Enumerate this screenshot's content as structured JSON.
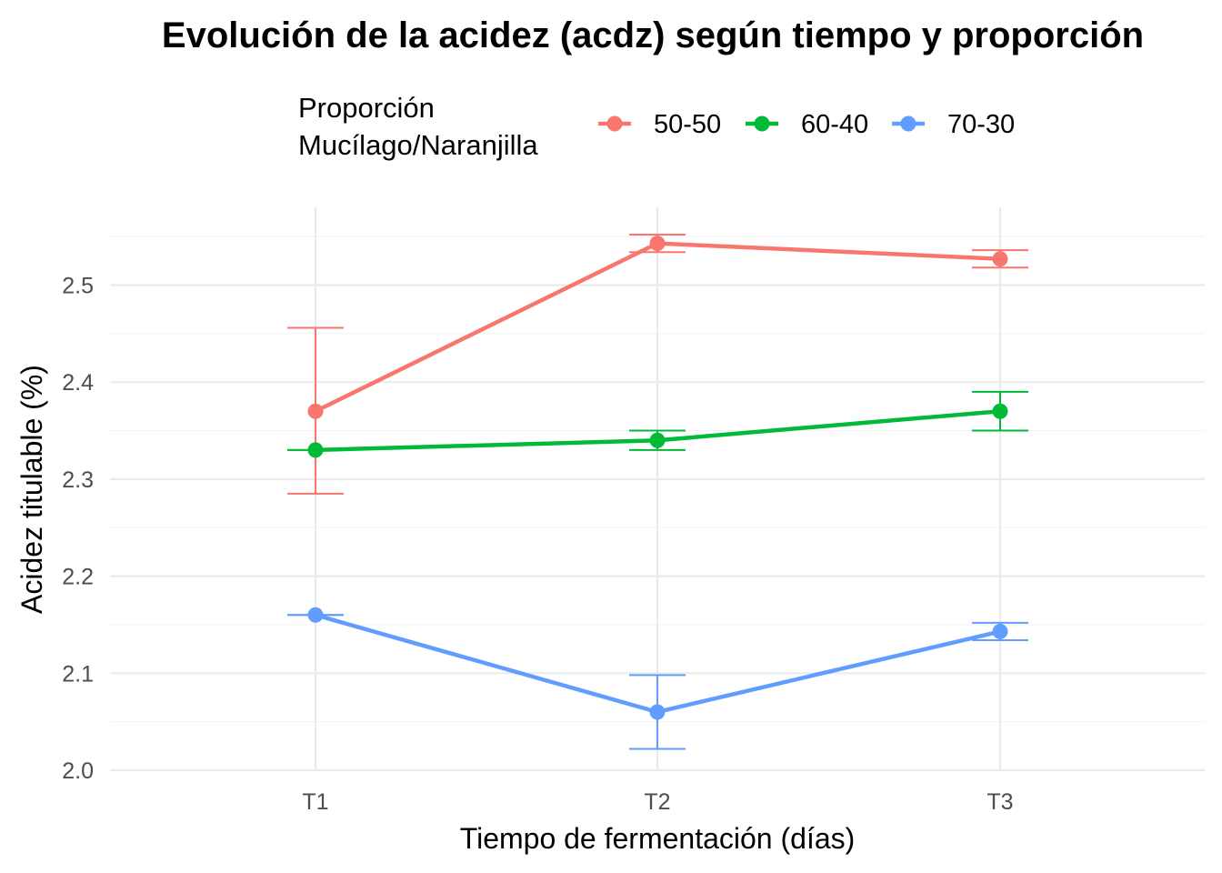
{
  "chart_data": {
    "type": "line",
    "title": "Evolución de la acidez (acdz) según tiempo y proporción",
    "xlabel": "Tiempo de fermentación (días)",
    "ylabel": "Acidez titulable (%)",
    "categories": [
      "T1",
      "T2",
      "T3"
    ],
    "ylim": [
      2.0,
      2.56
    ],
    "yticks": [
      2.0,
      2.1,
      2.2,
      2.3,
      2.4,
      2.5
    ],
    "ytick_labels": [
      "2.0",
      "2.1",
      "2.2",
      "2.3",
      "2.4",
      "2.5"
    ],
    "grid": true,
    "legend": {
      "title_lines": [
        "Proporción",
        "Mucílago/Naranjilla"
      ],
      "placement": "top"
    },
    "series": [
      {
        "name": "50-50",
        "color": "#F8766D",
        "values": [
          2.37,
          2.543,
          2.527
        ],
        "error_low": [
          2.285,
          2.534,
          2.518
        ],
        "error_high": [
          2.456,
          2.552,
          2.536
        ]
      },
      {
        "name": "60-40",
        "color": "#00BA38",
        "values": [
          2.33,
          2.34,
          2.37
        ],
        "error_low": [
          2.33,
          2.33,
          2.35
        ],
        "error_high": [
          2.33,
          2.35,
          2.39
        ]
      },
      {
        "name": "70-30",
        "color": "#619CFF",
        "values": [
          2.16,
          2.06,
          2.143
        ],
        "error_low": [
          2.16,
          2.022,
          2.134
        ],
        "error_high": [
          2.16,
          2.098,
          2.152
        ]
      }
    ]
  }
}
